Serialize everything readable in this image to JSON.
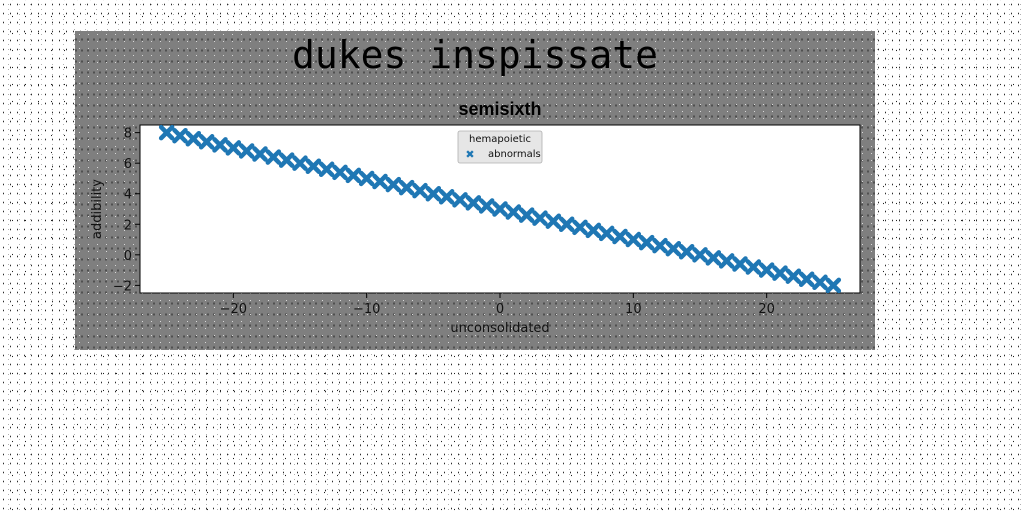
{
  "figure": {
    "suptitle": "dukes inspissate"
  },
  "chart_data": {
    "type": "scatter",
    "title": "semisixth",
    "xlabel": "unconsolidated",
    "ylabel": "addibility",
    "xlim": [
      -27,
      27
    ],
    "ylim": [
      -2.5,
      8.5
    ],
    "xticks": [
      -20,
      -10,
      0,
      10,
      20
    ],
    "xtick_labels": [
      "−20",
      "−10",
      "0",
      "10",
      "20"
    ],
    "yticks": [
      -2,
      0,
      2,
      4,
      6,
      8
    ],
    "ytick_labels": [
      "−2",
      "0",
      "2",
      "4",
      "6",
      "8"
    ],
    "grid": false,
    "legend": {
      "title": "hemapoietic",
      "placement": "top-center"
    },
    "marker": "X",
    "series": [
      {
        "name": "abnormals",
        "color": "#1f77b4",
        "x": [
          -25.0,
          -24.0,
          -23.0,
          -22.0,
          -21.0,
          -20.0,
          -19.0,
          -18.0,
          -17.0,
          -16.0,
          -15.0,
          -14.0,
          -13.0,
          -12.0,
          -11.0,
          -10.0,
          -9.0,
          -8.0,
          -7.0,
          -6.0,
          -5.0,
          -4.0,
          -3.0,
          -2.0,
          -1.0,
          0.0,
          1.0,
          2.0,
          3.0,
          4.0,
          5.0,
          6.0,
          7.0,
          8.0,
          9.0,
          10.0,
          11.0,
          12.0,
          13.0,
          14.0,
          15.0,
          16.0,
          17.0,
          18.0,
          19.0,
          20.0,
          21.0,
          22.0,
          23.0,
          24.0,
          25.0
        ],
        "y": [
          8.0,
          7.8,
          7.6,
          7.4,
          7.2,
          7.0,
          6.8,
          6.6,
          6.4,
          6.2,
          6.0,
          5.8,
          5.6,
          5.4,
          5.2,
          5.0,
          4.8,
          4.6,
          4.4,
          4.2,
          4.0,
          3.8,
          3.6,
          3.4,
          3.2,
          3.0,
          2.8,
          2.6,
          2.4,
          2.2,
          2.0,
          1.8,
          1.6,
          1.4,
          1.2,
          1.0,
          0.8,
          0.6,
          0.4,
          0.2,
          0.0,
          -0.2,
          -0.4,
          -0.6,
          -0.8,
          -1.0,
          -1.2,
          -1.4,
          -1.6,
          -1.8,
          -2.0
        ]
      }
    ]
  }
}
